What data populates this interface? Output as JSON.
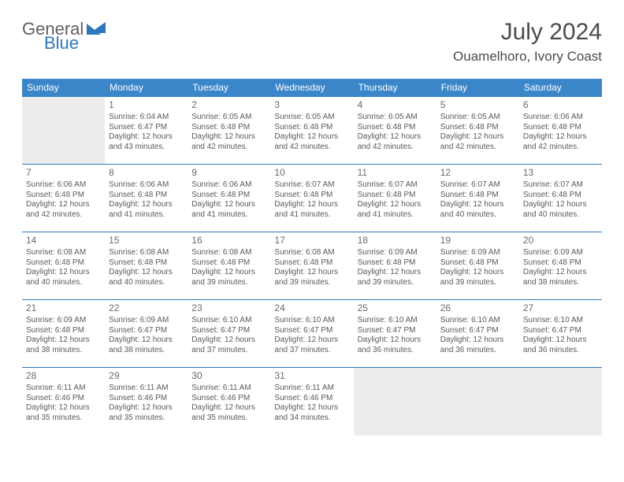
{
  "brand": {
    "word1": "General",
    "word2": "Blue"
  },
  "title": "July 2024",
  "location": "Ouamelhoro, Ivory Coast",
  "colors": {
    "header_bg": "#3a86c8",
    "row_border": "#2f77bb",
    "empty_bg": "#ececec",
    "brand_gray": "#5f6062",
    "brand_blue": "#2f77bb"
  },
  "day_headers": [
    "Sunday",
    "Monday",
    "Tuesday",
    "Wednesday",
    "Thursday",
    "Friday",
    "Saturday"
  ],
  "weeks": [
    [
      null,
      {
        "n": "1",
        "sunrise": "6:04 AM",
        "sunset": "6:47 PM",
        "daylight": "12 hours and 43 minutes."
      },
      {
        "n": "2",
        "sunrise": "6:05 AM",
        "sunset": "6:48 PM",
        "daylight": "12 hours and 42 minutes."
      },
      {
        "n": "3",
        "sunrise": "6:05 AM",
        "sunset": "6:48 PM",
        "daylight": "12 hours and 42 minutes."
      },
      {
        "n": "4",
        "sunrise": "6:05 AM",
        "sunset": "6:48 PM",
        "daylight": "12 hours and 42 minutes."
      },
      {
        "n": "5",
        "sunrise": "6:05 AM",
        "sunset": "6:48 PM",
        "daylight": "12 hours and 42 minutes."
      },
      {
        "n": "6",
        "sunrise": "6:06 AM",
        "sunset": "6:48 PM",
        "daylight": "12 hours and 42 minutes."
      }
    ],
    [
      {
        "n": "7",
        "sunrise": "6:06 AM",
        "sunset": "6:48 PM",
        "daylight": "12 hours and 42 minutes."
      },
      {
        "n": "8",
        "sunrise": "6:06 AM",
        "sunset": "6:48 PM",
        "daylight": "12 hours and 41 minutes."
      },
      {
        "n": "9",
        "sunrise": "6:06 AM",
        "sunset": "6:48 PM",
        "daylight": "12 hours and 41 minutes."
      },
      {
        "n": "10",
        "sunrise": "6:07 AM",
        "sunset": "6:48 PM",
        "daylight": "12 hours and 41 minutes."
      },
      {
        "n": "11",
        "sunrise": "6:07 AM",
        "sunset": "6:48 PM",
        "daylight": "12 hours and 41 minutes."
      },
      {
        "n": "12",
        "sunrise": "6:07 AM",
        "sunset": "6:48 PM",
        "daylight": "12 hours and 40 minutes."
      },
      {
        "n": "13",
        "sunrise": "6:07 AM",
        "sunset": "6:48 PM",
        "daylight": "12 hours and 40 minutes."
      }
    ],
    [
      {
        "n": "14",
        "sunrise": "6:08 AM",
        "sunset": "6:48 PM",
        "daylight": "12 hours and 40 minutes."
      },
      {
        "n": "15",
        "sunrise": "6:08 AM",
        "sunset": "6:48 PM",
        "daylight": "12 hours and 40 minutes."
      },
      {
        "n": "16",
        "sunrise": "6:08 AM",
        "sunset": "6:48 PM",
        "daylight": "12 hours and 39 minutes."
      },
      {
        "n": "17",
        "sunrise": "6:08 AM",
        "sunset": "6:48 PM",
        "daylight": "12 hours and 39 minutes."
      },
      {
        "n": "18",
        "sunrise": "6:09 AM",
        "sunset": "6:48 PM",
        "daylight": "12 hours and 39 minutes."
      },
      {
        "n": "19",
        "sunrise": "6:09 AM",
        "sunset": "6:48 PM",
        "daylight": "12 hours and 39 minutes."
      },
      {
        "n": "20",
        "sunrise": "6:09 AM",
        "sunset": "6:48 PM",
        "daylight": "12 hours and 38 minutes."
      }
    ],
    [
      {
        "n": "21",
        "sunrise": "6:09 AM",
        "sunset": "6:48 PM",
        "daylight": "12 hours and 38 minutes."
      },
      {
        "n": "22",
        "sunrise": "6:09 AM",
        "sunset": "6:47 PM",
        "daylight": "12 hours and 38 minutes."
      },
      {
        "n": "23",
        "sunrise": "6:10 AM",
        "sunset": "6:47 PM",
        "daylight": "12 hours and 37 minutes."
      },
      {
        "n": "24",
        "sunrise": "6:10 AM",
        "sunset": "6:47 PM",
        "daylight": "12 hours and 37 minutes."
      },
      {
        "n": "25",
        "sunrise": "6:10 AM",
        "sunset": "6:47 PM",
        "daylight": "12 hours and 36 minutes."
      },
      {
        "n": "26",
        "sunrise": "6:10 AM",
        "sunset": "6:47 PM",
        "daylight": "12 hours and 36 minutes."
      },
      {
        "n": "27",
        "sunrise": "6:10 AM",
        "sunset": "6:47 PM",
        "daylight": "12 hours and 36 minutes."
      }
    ],
    [
      {
        "n": "28",
        "sunrise": "6:11 AM",
        "sunset": "6:46 PM",
        "daylight": "12 hours and 35 minutes."
      },
      {
        "n": "29",
        "sunrise": "6:11 AM",
        "sunset": "6:46 PM",
        "daylight": "12 hours and 35 minutes."
      },
      {
        "n": "30",
        "sunrise": "6:11 AM",
        "sunset": "6:46 PM",
        "daylight": "12 hours and 35 minutes."
      },
      {
        "n": "31",
        "sunrise": "6:11 AM",
        "sunset": "6:46 PM",
        "daylight": "12 hours and 34 minutes."
      },
      null,
      null,
      null
    ]
  ],
  "labels": {
    "sunrise": "Sunrise: ",
    "sunset": "Sunset: ",
    "daylight": "Daylight: "
  }
}
